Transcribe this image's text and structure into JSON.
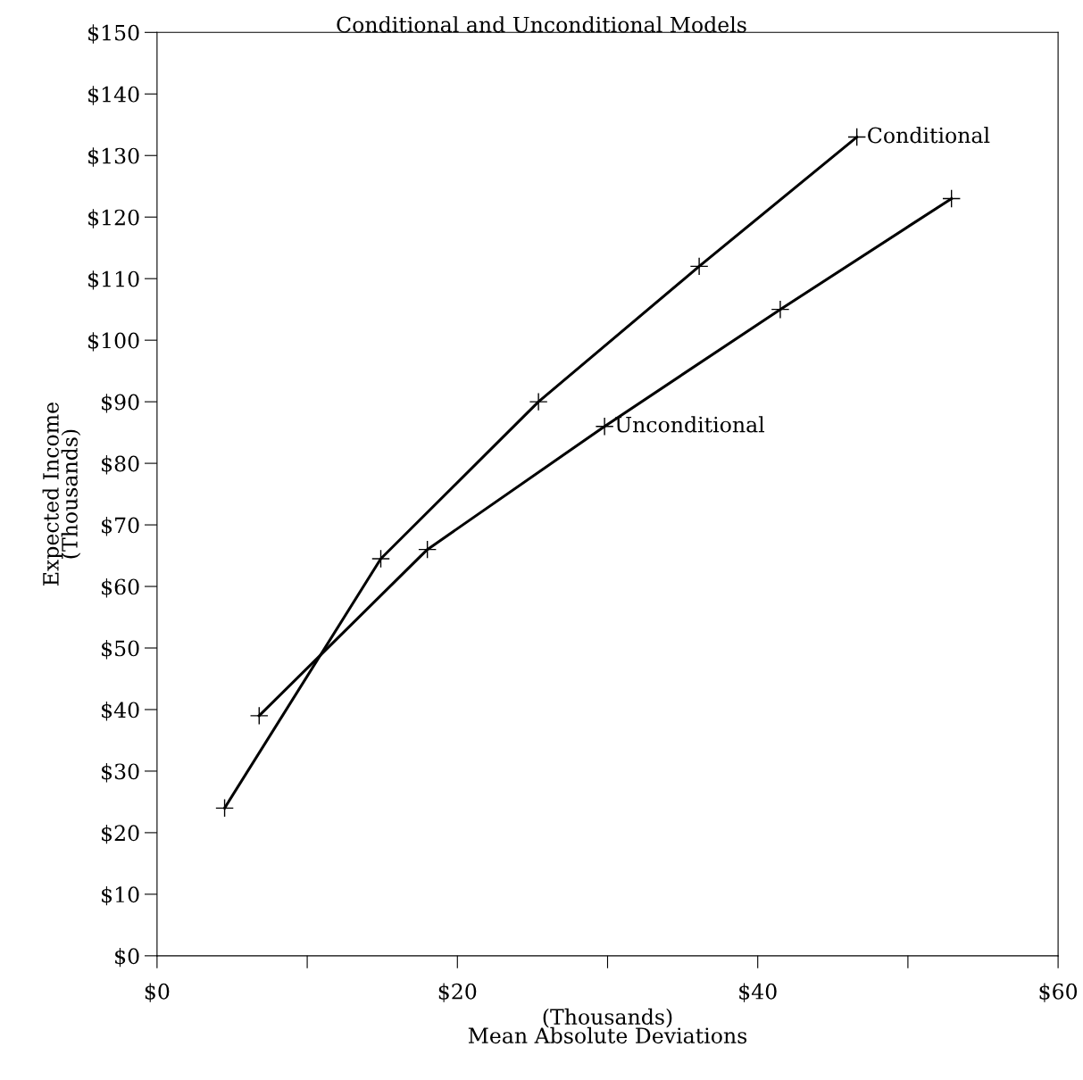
{
  "chart_data": {
    "type": "line",
    "title": "Conditional and Unconditional Models",
    "xlabel": "(Thousands)\nMean Absolute Deviations",
    "ylabel": "Expected Income\n(Thousands)",
    "series": [
      {
        "color": "#000000",
        "x": [
          4.5,
          14.9,
          25.4,
          36.1,
          46.6
        ],
        "values": [
          24,
          64.5,
          90,
          112,
          133
        ]
      },
      {
        "color": "#000000",
        "x": [
          6.8,
          18.0,
          29.8,
          41.5,
          52.9
        ],
        "values": [
          39,
          66,
          86,
          105,
          123
        ]
      }
    ],
    "annotations": [
      {
        "text": "Conditional",
        "x": 46.6,
        "y": 133
      },
      {
        "text": "Unconditional",
        "x": 29.8,
        "y": 86
      }
    ],
    "xlim": [
      0,
      60
    ],
    "ylim": [
      0,
      150
    ],
    "xticks": [
      {
        "value": 0,
        "label": "$0"
      },
      {
        "value": 10,
        "label": null
      },
      {
        "value": 20,
        "label": "$20"
      },
      {
        "value": 30,
        "label": null
      },
      {
        "value": 40,
        "label": "$40"
      },
      {
        "value": 50,
        "label": null
      },
      {
        "value": 60,
        "label": "$60"
      }
    ],
    "yticks": [
      {
        "value": 0,
        "label": "$0"
      },
      {
        "value": 10,
        "label": "$10"
      },
      {
        "value": 20,
        "label": "$20"
      },
      {
        "value": 30,
        "label": "$30"
      },
      {
        "value": 40,
        "label": "$40"
      },
      {
        "value": 50,
        "label": "$50"
      },
      {
        "value": 60,
        "label": "$60"
      },
      {
        "value": 70,
        "label": "$70"
      },
      {
        "value": 80,
        "label": "$80"
      },
      {
        "value": 90,
        "label": "$90"
      },
      {
        "value": 100,
        "label": "$100"
      },
      {
        "value": 110,
        "label": "$110"
      },
      {
        "value": 120,
        "label": "$120"
      },
      {
        "value": 130,
        "label": "$130"
      },
      {
        "value": 140,
        "label": "$140"
      },
      {
        "value": 150,
        "label": "$150"
      }
    ],
    "marker": "cross",
    "line_style": "solid",
    "grid": false,
    "legend": false
  }
}
